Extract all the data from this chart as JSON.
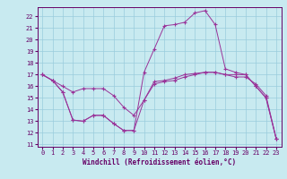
{
  "xlabel": "Windchill (Refroidissement éolien,°C)",
  "background_color": "#c8eaf0",
  "grid_color": "#99ccdd",
  "line_color": "#993399",
  "x_ticks": [
    0,
    1,
    2,
    3,
    4,
    5,
    6,
    7,
    8,
    9,
    10,
    11,
    12,
    13,
    14,
    15,
    16,
    17,
    18,
    19,
    20,
    21,
    22,
    23
  ],
  "y_ticks": [
    11,
    12,
    13,
    14,
    15,
    16,
    17,
    18,
    19,
    20,
    21,
    22
  ],
  "xlim": [
    -0.5,
    23.5
  ],
  "ylim": [
    10.8,
    22.8
  ],
  "series1_x": [
    0,
    1,
    2,
    3,
    4,
    5,
    6,
    7,
    8,
    9,
    10,
    11,
    12,
    13,
    14,
    15,
    16,
    17,
    18,
    19,
    20,
    21,
    22,
    23
  ],
  "series1_y": [
    17.0,
    16.5,
    15.5,
    13.1,
    13.0,
    13.5,
    13.5,
    12.8,
    12.2,
    12.2,
    14.8,
    16.4,
    16.5,
    16.7,
    17.0,
    17.1,
    17.2,
    17.2,
    17.0,
    17.0,
    17.0,
    16.0,
    15.0,
    11.5
  ],
  "series2_x": [
    0,
    1,
    2,
    3,
    4,
    5,
    6,
    7,
    8,
    9,
    10,
    11,
    12,
    13,
    14,
    15,
    16,
    17,
    18,
    19,
    20,
    21,
    22,
    23
  ],
  "series2_y": [
    17.0,
    16.5,
    15.5,
    13.1,
    13.0,
    13.5,
    13.5,
    12.8,
    12.2,
    12.2,
    17.2,
    19.2,
    21.2,
    21.3,
    21.5,
    22.3,
    22.5,
    21.3,
    17.5,
    17.2,
    17.0,
    16.0,
    15.0,
    11.5
  ],
  "series3_x": [
    0,
    1,
    2,
    3,
    4,
    5,
    6,
    7,
    8,
    9,
    10,
    11,
    12,
    13,
    14,
    15,
    16,
    17,
    18,
    19,
    20,
    21,
    22,
    23
  ],
  "series3_y": [
    17.0,
    16.5,
    16.0,
    15.5,
    15.8,
    15.8,
    15.8,
    15.2,
    14.2,
    13.5,
    14.8,
    16.2,
    16.4,
    16.5,
    16.8,
    17.0,
    17.2,
    17.2,
    17.0,
    16.8,
    16.8,
    16.2,
    15.2,
    11.5
  ]
}
